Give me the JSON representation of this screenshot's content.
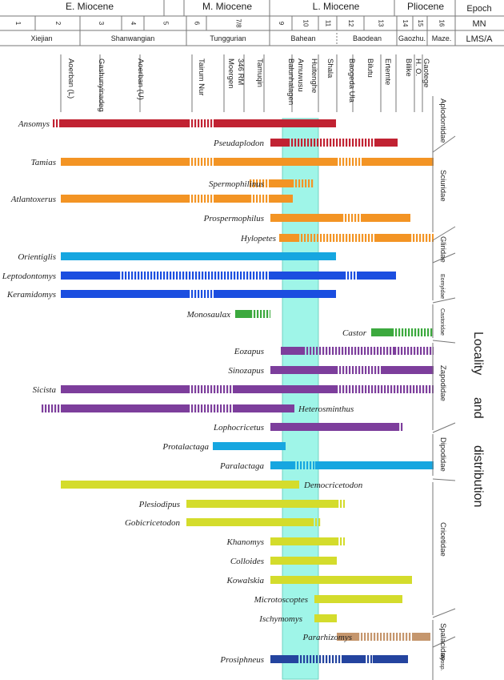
{
  "colors": {
    "red": "#c12232",
    "orange": "#f39424",
    "blue": "#1b4ee0",
    "cyan": "#16a6e0",
    "green": "#3ca93e",
    "purple": "#7d3e9c",
    "yellow": "#d4dc2c",
    "brown": "#c5966d",
    "navy": "#24449f",
    "highlight": "#7ff2e0"
  },
  "header": {
    "epoch_label": "Epoch",
    "mn_label": "MN",
    "lms_label": "LMS/A",
    "epochs": [
      "E. Miocene",
      "M. Miocene",
      "L. Miocene",
      "Pliocene"
    ],
    "mn_zones": [
      "1",
      "2",
      "3",
      "4",
      "5",
      "6",
      "7/8",
      "9",
      "10",
      "11",
      "12",
      "13",
      "14",
      "15",
      "16"
    ],
    "lms": [
      "Xiejian",
      "Shanwangian",
      "Tunggurian",
      "Bahean",
      "Baodean",
      "Gaozhu.",
      "Maze."
    ]
  },
  "localities": [
    "Aoerban (L)",
    "Gashunyinadeg",
    "Aoerban (U)",
    "Tairum Nur",
    "Moergen",
    "346 RM",
    "Tamuqin",
    "Balunhalagen",
    "Amuwusu",
    "Huitenghe",
    "Shala",
    "Baogeda Ula",
    "Bilutu",
    "Ertemte",
    "Bilike",
    "H. O.",
    "Gaotege"
  ],
  "families": [
    "Aplodontidae",
    "Sciuridae",
    "Gliridae",
    "Eomyidae",
    "Castoridae",
    "Zapodidae",
    "Dipodidae",
    "Cricetidae",
    "Spalacidae",
    "Myosp."
  ],
  "side_label": [
    "Locality",
    "and",
    "distribution"
  ],
  "chart_data": {
    "type": "range",
    "taxa": [
      {
        "name": "Ansomys",
        "color": "red"
      },
      {
        "name": "Pseudaplodon",
        "color": "red"
      },
      {
        "name": "Tamias",
        "color": "orange"
      },
      {
        "name": "Spermophilinus",
        "color": "orange"
      },
      {
        "name": "Atlantoxerus",
        "color": "orange"
      },
      {
        "name": "Prospermophilus",
        "color": "orange"
      },
      {
        "name": "Hylopetes",
        "color": "orange"
      },
      {
        "name": "Orientiglis",
        "color": "cyan"
      },
      {
        "name": "Leptodontomys",
        "color": "blue"
      },
      {
        "name": "Keramidomys",
        "color": "blue"
      },
      {
        "name": "Monosaulax",
        "color": "green"
      },
      {
        "name": "Castor",
        "color": "green"
      },
      {
        "name": "Eozapus",
        "color": "purple"
      },
      {
        "name": "Sinozapus",
        "color": "purple"
      },
      {
        "name": "Sicista",
        "color": "purple"
      },
      {
        "name": "Heterosminthus",
        "color": "purple"
      },
      {
        "name": "Lophocricetus",
        "color": "purple"
      },
      {
        "name": "Protalactaga",
        "color": "cyan"
      },
      {
        "name": "Paralactaga",
        "color": "cyan"
      },
      {
        "name": "Democricetodon",
        "color": "yellow"
      },
      {
        "name": "Plesiodipus",
        "color": "yellow"
      },
      {
        "name": "Gobicricetodon",
        "color": "yellow"
      },
      {
        "name": "Khanomys",
        "color": "yellow"
      },
      {
        "name": "Colloides",
        "color": "yellow"
      },
      {
        "name": "Kowalskia",
        "color": "yellow"
      },
      {
        "name": "Microtoscoptes",
        "color": "yellow"
      },
      {
        "name": "Ischymomys",
        "color": "yellow"
      },
      {
        "name": "Pararhizomys",
        "color": "brown"
      },
      {
        "name": "Prosiphneus",
        "color": "navy"
      }
    ]
  }
}
